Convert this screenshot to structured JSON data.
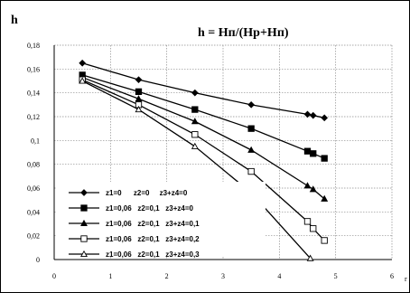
{
  "chart_data": {
    "type": "line",
    "title": "h = Hп/(Hp+Hп)",
    "ylabel": "h",
    "xlabel": "r",
    "xlim": [
      0,
      6
    ],
    "ylim": [
      0,
      0.18
    ],
    "x_ticks": [
      "0",
      "1",
      "2",
      "3",
      "4",
      "5",
      "6"
    ],
    "y_ticks": [
      "0",
      "0,02",
      "0,04",
      "0,06",
      "0,08",
      "0,1",
      "0,12",
      "0,14",
      "0,16",
      "0,18"
    ],
    "grid": true,
    "legend_position": "bottom-left",
    "series": [
      {
        "name": "z1=0      z2=0     z3+z4=0",
        "marker": "diamond-filled",
        "points": [
          [
            0.5,
            0.165
          ],
          [
            1.5,
            0.151
          ],
          [
            2.5,
            0.14
          ],
          [
            3.5,
            0.13
          ],
          [
            4.5,
            0.122
          ],
          [
            4.6,
            0.121
          ],
          [
            4.8,
            0.119
          ]
        ]
      },
      {
        "name": "z1=0,06   z2=0,1   z3+z4=0",
        "marker": "square-filled",
        "points": [
          [
            0.5,
            0.155
          ],
          [
            1.5,
            0.141
          ],
          [
            2.5,
            0.126
          ],
          [
            3.5,
            0.11
          ],
          [
            4.5,
            0.091
          ],
          [
            4.6,
            0.089
          ],
          [
            4.8,
            0.085
          ]
        ]
      },
      {
        "name": "z1=0,06   z2=0,1   z3+z4=0,1",
        "marker": "triangle-filled",
        "points": [
          [
            0.5,
            0.153
          ],
          [
            1.5,
            0.135
          ],
          [
            2.5,
            0.116
          ],
          [
            3.5,
            0.092
          ],
          [
            4.5,
            0.062
          ],
          [
            4.6,
            0.059
          ],
          [
            4.8,
            0.051
          ]
        ]
      },
      {
        "name": "z1=0,06   z2=0,1   z3+z4=0,2",
        "marker": "square-open",
        "points": [
          [
            0.5,
            0.151
          ],
          [
            1.5,
            0.13
          ],
          [
            2.5,
            0.105
          ],
          [
            3.5,
            0.074
          ],
          [
            4.5,
            0.032
          ],
          [
            4.6,
            0.026
          ],
          [
            4.8,
            0.016
          ]
        ]
      },
      {
        "name": "z1=0,06   z2=0,1   z3+z4=0,3",
        "marker": "triangle-open",
        "points": [
          [
            0.5,
            0.15
          ],
          [
            1.5,
            0.126
          ],
          [
            2.5,
            0.095
          ],
          [
            3.5,
            0.056
          ],
          [
            4.55,
            0.001
          ]
        ]
      }
    ]
  }
}
